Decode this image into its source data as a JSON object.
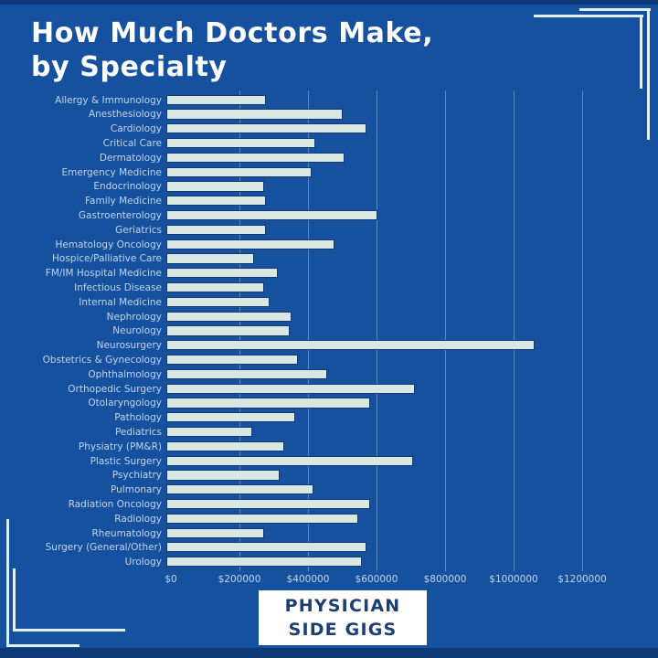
{
  "page": {
    "background_color": "#15519f",
    "edge_strip_color": "#0d3a77",
    "frame_color": "#e2f0f8"
  },
  "title": {
    "line1": "How Much Doctors Make,",
    "line2": "by Specialty"
  },
  "chart_data": {
    "type": "bar",
    "orientation": "horizontal",
    "title": "How Much Doctors Make, by Specialty",
    "categories": [
      "Allergy & Immunology",
      "Anesthesiology",
      "Cardiology",
      "Critical Care",
      "Dermatology",
      "Emergency Medicine",
      "Endocrinology",
      "Family Medicine",
      "Gastroenterology",
      "Geriatrics",
      "Hematology Oncology",
      "Hospice/Palliative Care",
      "FM/IM Hospital Medicine",
      "Infectious Disease",
      "Internal Medicine",
      "Nephrology",
      "Neurology",
      "Neurosurgery",
      "Obstetrics & Gynecology",
      "Ophthalmology",
      "Orthopedic Surgery",
      "Otolaryngology",
      "Pathology",
      "Pediatrics",
      "Physiatry (PM&R)",
      "Plastic Surgery",
      "Psychiatry",
      "Pulmonary",
      "Radiation Oncology",
      "Radiology",
      "Rheumatology",
      "Surgery (General/Other)",
      "Urology"
    ],
    "values": [
      290000,
      515000,
      585000,
      435000,
      520000,
      425000,
      285000,
      290000,
      615000,
      290000,
      490000,
      255000,
      325000,
      285000,
      300000,
      365000,
      360000,
      1075000,
      385000,
      470000,
      725000,
      595000,
      375000,
      250000,
      345000,
      720000,
      330000,
      430000,
      595000,
      560000,
      285000,
      585000,
      570000
    ],
    "xlabel": "",
    "ylabel": "",
    "tick_labels": [
      "$0",
      "$200000",
      "$400000",
      "$600000",
      "$800000",
      "$1000000",
      "$1200000"
    ],
    "tick_values": [
      0,
      200000,
      400000,
      600000,
      800000,
      1000000,
      1200000
    ],
    "xlim": [
      0,
      1368000
    ],
    "grid": true,
    "bar_color": "#d9e8e3",
    "bar_border_color": "#123a70",
    "label_color": "#c3d5e8"
  },
  "logo": {
    "line1": "PHYSICIAN",
    "line2": "SIDE GIGS"
  }
}
